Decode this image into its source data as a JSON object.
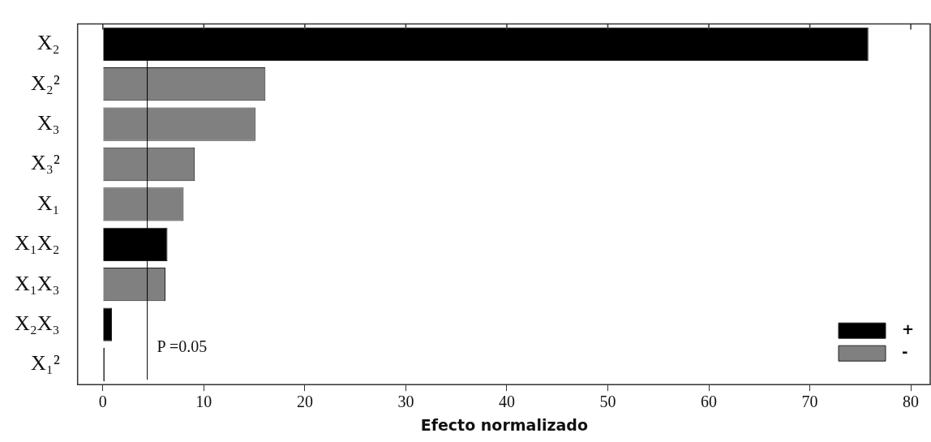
{
  "chart_data": {
    "type": "bar",
    "orientation": "horizontal",
    "xlabel": "Efecto normalizado",
    "categories": [
      "X₂",
      "X₂²",
      "X₃",
      "X₃²",
      "X₁",
      "X₁X₂",
      "X₁X₃",
      "X₂X₃",
      "X₁²"
    ],
    "series": [
      {
        "name": "+",
        "color": "#000000",
        "values": [
          75.8,
          null,
          null,
          null,
          null,
          6.4,
          null,
          0.9,
          0.2
        ]
      },
      {
        "name": "-",
        "color": "#808080",
        "values": [
          null,
          16.1,
          15.1,
          9.1,
          8.0,
          null,
          6.2,
          null,
          null
        ]
      }
    ],
    "xlim": [
      -2.5,
      82
    ],
    "xticks": [
      0,
      10,
      20,
      30,
      40,
      50,
      60,
      70,
      80
    ],
    "ref_lines": [
      {
        "axis": "x",
        "value": 4.4,
        "color": "#000000"
      }
    ],
    "annotations": [
      "P =0.05"
    ],
    "legend": "bottom right",
    "grid": false
  }
}
